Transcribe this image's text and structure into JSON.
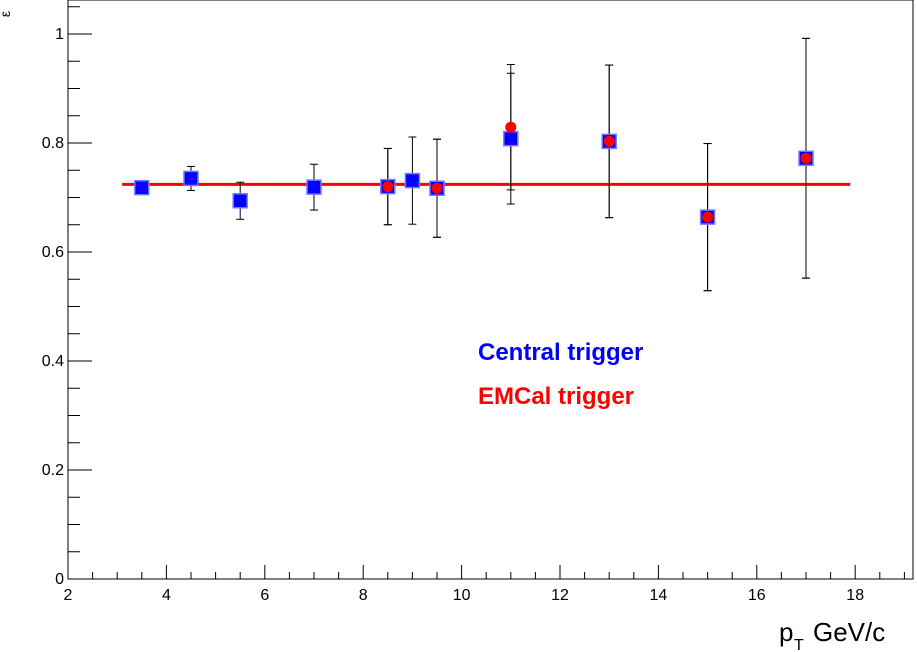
{
  "chart_data": {
    "type": "scatter",
    "xlabel_main": "p",
    "xlabel_sub": "T",
    "xlabel_unit": "GeV/c",
    "ylabel": "ε",
    "xlim": [
      2,
      19
    ],
    "ylim": [
      0,
      1.05
    ],
    "x_ticks": [
      "2",
      "4",
      "6",
      "8",
      "10",
      "12",
      "14",
      "16",
      "18"
    ],
    "y_ticks": [
      "0",
      "0.2",
      "0.4",
      "0.6",
      "0.8",
      "1"
    ],
    "grid": false,
    "fit_line": {
      "value": 0.724,
      "x_range": [
        3.1,
        17.9
      ],
      "color": "#ff0000"
    },
    "series": [
      {
        "name": "Central trigger",
        "color": "#0000ff",
        "marker": "square",
        "points": [
          {
            "x": 3.5,
            "y": 0.718,
            "err": 0.012
          },
          {
            "x": 4.5,
            "y": 0.735,
            "err": 0.022
          },
          {
            "x": 5.5,
            "y": 0.694,
            "err": 0.034
          },
          {
            "x": 7.0,
            "y": 0.719,
            "err": 0.042
          },
          {
            "x": 8.5,
            "y": 0.72,
            "err": 0.07
          },
          {
            "x": 9.0,
            "y": 0.731,
            "err": 0.08
          },
          {
            "x": 9.5,
            "y": 0.717,
            "err": 0.09
          },
          {
            "x": 11.0,
            "y": 0.808,
            "err": 0.12
          },
          {
            "x": 13.0,
            "y": 0.803,
            "err": 0.14
          },
          {
            "x": 15.0,
            "y": 0.664,
            "err": 0.135
          },
          {
            "x": 17.0,
            "y": 0.772,
            "err": 0.22
          }
        ]
      },
      {
        "name": "EMCal trigger",
        "color": "#ff0000",
        "marker": "circle",
        "points": [
          {
            "x": 8.5,
            "y": 0.72,
            "err": 0.07
          },
          {
            "x": 9.5,
            "y": 0.717,
            "err": 0.09
          },
          {
            "x": 11.0,
            "y": 0.829,
            "err": 0.115
          },
          {
            "x": 13.0,
            "y": 0.803,
            "err": 0.14
          },
          {
            "x": 15.0,
            "y": 0.664,
            "err": 0.135
          },
          {
            "x": 17.0,
            "y": 0.772,
            "err": 0.22
          }
        ]
      }
    ]
  }
}
